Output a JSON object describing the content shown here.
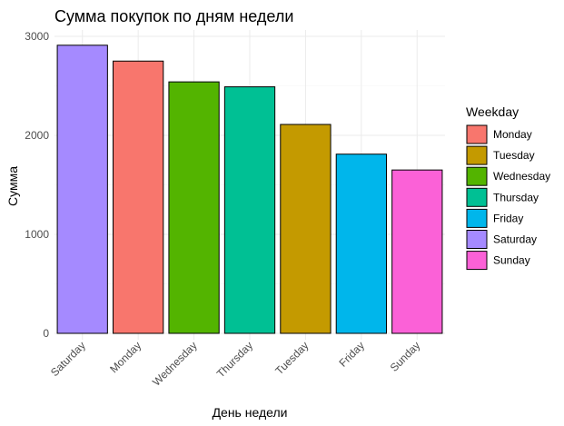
{
  "chart_data": {
    "type": "bar",
    "title": "Сумма покупок по дням недели",
    "xlabel": "День недели",
    "ylabel": "Сумма",
    "ylim": [
      0,
      3100
    ],
    "yticks": [
      0,
      1000,
      2000,
      3000
    ],
    "grid": true,
    "categories": [
      "Saturday",
      "Monday",
      "Wednesday",
      "Thursday",
      "Tuesday",
      "Friday",
      "Sunday"
    ],
    "values": [
      2910,
      2750,
      2540,
      2490,
      2110,
      1810,
      1650
    ],
    "bar_colors": [
      "#A58AFF",
      "#F8766D",
      "#53B400",
      "#00C094",
      "#C49A00",
      "#00B6EB",
      "#FB61D7"
    ],
    "x_tick_rotation_deg": -45,
    "legend": {
      "title": "Weekday",
      "position": "right",
      "items": [
        {
          "label": "Monday",
          "color": "#F8766D"
        },
        {
          "label": "Tuesday",
          "color": "#C49A00"
        },
        {
          "label": "Wednesday",
          "color": "#53B400"
        },
        {
          "label": "Thursday",
          "color": "#00C094"
        },
        {
          "label": "Friday",
          "color": "#00B6EB"
        },
        {
          "label": "Saturday",
          "color": "#A58AFF"
        },
        {
          "label": "Sunday",
          "color": "#FB61D7"
        }
      ]
    }
  }
}
